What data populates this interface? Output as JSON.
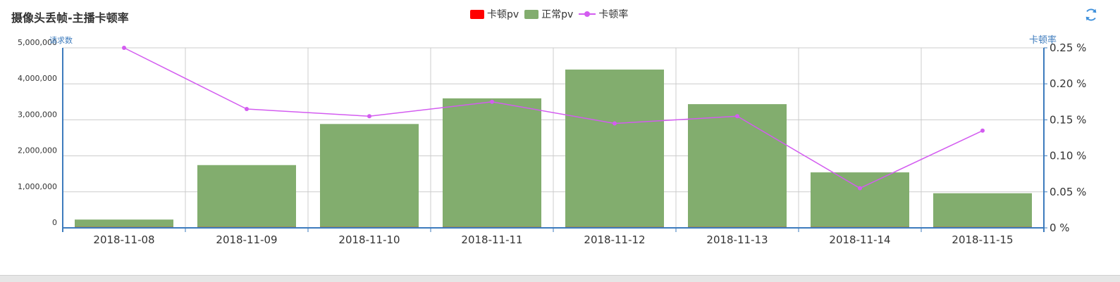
{
  "header": {
    "title": "摄像头丢帧-主播卡顿率",
    "refresh_icon": "refresh-icon"
  },
  "legend": [
    {
      "label": "卡顿pv",
      "color": "#ff0000",
      "kind": "bar"
    },
    {
      "label": "正常pv",
      "color": "#82ad6e",
      "kind": "bar"
    },
    {
      "label": "卡顿率",
      "color": "#d35cf0",
      "kind": "line"
    }
  ],
  "chart_data": {
    "type": "bar",
    "title": "摄像头丢帧-主播卡顿率",
    "categories": [
      "2018-11-08",
      "2018-11-09",
      "2018-11-10",
      "2018-11-11",
      "2018-11-12",
      "2018-11-13",
      "2018-11-14",
      "2018-11-15"
    ],
    "ylabel": "请求数",
    "ylabel_right": "卡顿率",
    "ylim": [
      0,
      5000000
    ],
    "ylim_right": [
      0,
      0.25
    ],
    "yticks": [
      "0",
      "1,000,000",
      "2,000,000",
      "3,000,000",
      "4,000,000",
      "5,000,000"
    ],
    "yticks_right": [
      "0 %",
      "0.05 %",
      "0.10 %",
      "0.15 %",
      "0.20 %",
      "0.25 %"
    ],
    "stacked": true,
    "grid": true,
    "legend_position": "top-center",
    "series": [
      {
        "name": "卡顿pv",
        "type": "bar",
        "axis": "left",
        "color": "#ff0000",
        "values": [
          200,
          3000,
          4500,
          6500,
          6600,
          5500,
          900,
          1300
        ]
      },
      {
        "name": "正常pv",
        "type": "bar",
        "axis": "left",
        "color": "#82ad6e",
        "values": [
          230000,
          1740000,
          2880000,
          3590000,
          4390000,
          3430000,
          1540000,
          960000
        ]
      },
      {
        "name": "卡顿率",
        "type": "line",
        "axis": "right",
        "color": "#d35cf0",
        "values": [
          0.25,
          0.165,
          0.155,
          0.175,
          0.145,
          0.155,
          0.055,
          0.135
        ]
      }
    ]
  }
}
